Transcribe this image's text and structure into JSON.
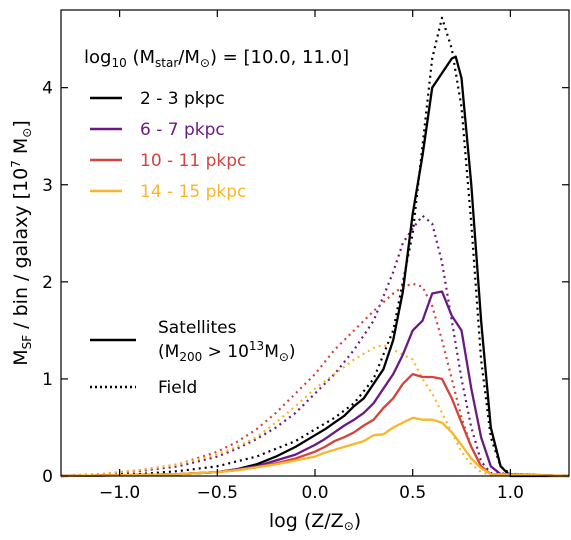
{
  "chart_data": {
    "type": "line",
    "title": "",
    "xlabel": "log (Z/Z⊙)",
    "ylabel": "M_SF / bin / galaxy [10^7 M⊙]",
    "xlim": [
      -1.3,
      1.3
    ],
    "ylim": [
      0,
      4.8
    ],
    "x_ticks": [
      -1.0,
      -0.5,
      0.0,
      0.5,
      1.0
    ],
    "x_tick_labels": [
      "−1.0",
      "−0.5",
      "0.0",
      "0.5",
      "1.0"
    ],
    "y_ticks": [
      0,
      1,
      2,
      3,
      4
    ],
    "y_tick_labels": [
      "0",
      "1",
      "2",
      "3",
      "4"
    ],
    "grid": false,
    "legend_title": "log10 (Mstar/M⊙) = [10.0, 11.0]",
    "legend_placement": "top-left",
    "style_legend_placement": "center-left",
    "colors": {
      "2-3": "#000000",
      "6-7": "#6a1b7f",
      "10-11": "#d2443d",
      "14-15": "#f8b62b"
    },
    "series": [
      {
        "name": "2 - 3 pkpc",
        "group": "Satellites",
        "color": "#000000",
        "style": "solid",
        "x": [
          -1.3,
          -1.1,
          -0.9,
          -0.7,
          -0.5,
          -0.4,
          -0.3,
          -0.2,
          -0.1,
          0.0,
          0.05,
          0.1,
          0.15,
          0.2,
          0.25,
          0.3,
          0.35,
          0.4,
          0.45,
          0.5,
          0.55,
          0.6,
          0.65,
          0.7,
          0.72,
          0.75,
          0.8,
          0.85,
          0.9,
          0.95,
          1.0,
          1.3
        ],
        "y": [
          0,
          0.005,
          0.01,
          0.02,
          0.04,
          0.07,
          0.12,
          0.2,
          0.3,
          0.42,
          0.48,
          0.55,
          0.62,
          0.72,
          0.8,
          0.95,
          1.1,
          1.4,
          1.9,
          2.7,
          3.3,
          4.0,
          4.15,
          4.3,
          4.32,
          4.1,
          3.0,
          1.6,
          0.5,
          0.1,
          0,
          0
        ]
      },
      {
        "name": "6 - 7 pkpc",
        "group": "Satellites",
        "color": "#6a1b7f",
        "style": "solid",
        "x": [
          -1.3,
          -1.1,
          -0.9,
          -0.7,
          -0.5,
          -0.4,
          -0.3,
          -0.2,
          -0.1,
          0.0,
          0.05,
          0.1,
          0.15,
          0.2,
          0.25,
          0.3,
          0.35,
          0.4,
          0.45,
          0.5,
          0.55,
          0.6,
          0.65,
          0.7,
          0.75,
          0.8,
          0.85,
          0.9,
          0.95,
          1.3
        ],
        "y": [
          0,
          0.005,
          0.01,
          0.02,
          0.04,
          0.07,
          0.1,
          0.16,
          0.22,
          0.32,
          0.38,
          0.45,
          0.52,
          0.58,
          0.65,
          0.75,
          0.9,
          1.05,
          1.25,
          1.5,
          1.6,
          1.88,
          1.9,
          1.65,
          1.5,
          0.9,
          0.4,
          0.1,
          0.02,
          0
        ]
      },
      {
        "name": "10 - 11 pkpc",
        "group": "Satellites",
        "color": "#d2443d",
        "style": "solid",
        "x": [
          -1.3,
          -1.1,
          -0.9,
          -0.7,
          -0.5,
          -0.4,
          -0.3,
          -0.2,
          -0.1,
          0.0,
          0.05,
          0.1,
          0.15,
          0.2,
          0.25,
          0.3,
          0.35,
          0.4,
          0.45,
          0.5,
          0.55,
          0.6,
          0.65,
          0.7,
          0.75,
          0.8,
          0.85,
          0.9,
          1.3
        ],
        "y": [
          0,
          0.005,
          0.01,
          0.02,
          0.04,
          0.06,
          0.09,
          0.13,
          0.18,
          0.25,
          0.3,
          0.36,
          0.4,
          0.45,
          0.52,
          0.58,
          0.7,
          0.8,
          0.95,
          1.05,
          1.02,
          1.02,
          1.0,
          0.8,
          0.55,
          0.3,
          0.1,
          0.02,
          0
        ]
      },
      {
        "name": "14 - 15 pkpc",
        "group": "Satellites",
        "color": "#f8b62b",
        "style": "solid",
        "x": [
          -1.3,
          -1.1,
          -0.9,
          -0.7,
          -0.5,
          -0.4,
          -0.3,
          -0.2,
          -0.1,
          0.0,
          0.05,
          0.1,
          0.15,
          0.2,
          0.25,
          0.3,
          0.35,
          0.4,
          0.45,
          0.5,
          0.55,
          0.6,
          0.65,
          0.7,
          0.75,
          0.8,
          0.85,
          0.9,
          1.3
        ],
        "y": [
          0,
          0.005,
          0.01,
          0.02,
          0.04,
          0.06,
          0.09,
          0.12,
          0.16,
          0.2,
          0.24,
          0.27,
          0.3,
          0.33,
          0.36,
          0.42,
          0.43,
          0.5,
          0.55,
          0.6,
          0.58,
          0.58,
          0.55,
          0.45,
          0.32,
          0.18,
          0.08,
          0.02,
          0
        ]
      },
      {
        "name": "2 - 3 pkpc",
        "group": "Field",
        "color": "#000000",
        "style": "dotted",
        "x": [
          -1.3,
          -1.1,
          -0.9,
          -0.7,
          -0.5,
          -0.4,
          -0.3,
          -0.2,
          -0.1,
          0.0,
          0.1,
          0.2,
          0.3,
          0.4,
          0.5,
          0.55,
          0.6,
          0.65,
          0.7,
          0.75,
          0.8,
          0.85,
          0.9,
          0.95,
          1.0,
          1.3
        ],
        "y": [
          0,
          0.01,
          0.02,
          0.05,
          0.1,
          0.15,
          0.2,
          0.28,
          0.36,
          0.48,
          0.6,
          0.75,
          1.0,
          1.5,
          2.5,
          3.4,
          4.3,
          4.72,
          4.4,
          3.8,
          2.6,
          1.2,
          0.4,
          0.1,
          0.02,
          0
        ]
      },
      {
        "name": "6 - 7 pkpc",
        "group": "Field",
        "color": "#6a1b7f",
        "style": "dotted",
        "x": [
          -1.3,
          -1.1,
          -0.9,
          -0.7,
          -0.5,
          -0.4,
          -0.3,
          -0.2,
          -0.1,
          0.0,
          0.1,
          0.2,
          0.3,
          0.4,
          0.45,
          0.5,
          0.55,
          0.6,
          0.65,
          0.7,
          0.75,
          0.8,
          0.85,
          0.9,
          1.3
        ],
        "y": [
          0,
          0.02,
          0.05,
          0.1,
          0.2,
          0.28,
          0.38,
          0.5,
          0.65,
          0.85,
          1.05,
          1.3,
          1.6,
          2.1,
          2.4,
          2.55,
          2.68,
          2.6,
          2.2,
          1.6,
          1.0,
          0.5,
          0.15,
          0.03,
          0
        ]
      },
      {
        "name": "10 - 11 pkpc",
        "group": "Field",
        "color": "#d2443d",
        "style": "dotted",
        "x": [
          -1.3,
          -1.1,
          -0.9,
          -0.7,
          -0.5,
          -0.4,
          -0.3,
          -0.2,
          -0.1,
          0.0,
          0.1,
          0.2,
          0.3,
          0.4,
          0.45,
          0.5,
          0.55,
          0.6,
          0.65,
          0.7,
          0.75,
          0.8,
          0.85,
          0.9,
          1.3
        ],
        "y": [
          0,
          0.02,
          0.06,
          0.12,
          0.25,
          0.35,
          0.48,
          0.65,
          0.85,
          1.05,
          1.3,
          1.5,
          1.7,
          1.88,
          1.95,
          1.98,
          1.95,
          1.75,
          1.4,
          1.0,
          0.6,
          0.3,
          0.1,
          0.02,
          0
        ]
      },
      {
        "name": "14 - 15 pkpc",
        "group": "Field",
        "color": "#f8b62b",
        "style": "dotted",
        "x": [
          -1.3,
          -1.1,
          -0.9,
          -0.7,
          -0.5,
          -0.4,
          -0.3,
          -0.2,
          -0.1,
          0.0,
          0.1,
          0.2,
          0.3,
          0.35,
          0.4,
          0.45,
          0.5,
          0.55,
          0.6,
          0.65,
          0.7,
          0.75,
          0.8,
          0.85,
          0.9,
          1.3
        ],
        "y": [
          0,
          0.02,
          0.06,
          0.12,
          0.22,
          0.3,
          0.4,
          0.55,
          0.72,
          0.9,
          1.05,
          1.2,
          1.32,
          1.35,
          1.3,
          1.25,
          1.2,
          1.0,
          0.85,
          0.65,
          0.45,
          0.25,
          0.12,
          0.04,
          0.01,
          0
        ]
      }
    ],
    "legend": {
      "title": "log10 (Mstar/M⊙) = [10.0, 11.0]",
      "entries": [
        {
          "label": "2 - 3 pkpc",
          "color": "#000000"
        },
        {
          "label": "6 - 7 pkpc",
          "color": "#6a1b7f"
        },
        {
          "label": "10 - 11 pkpc",
          "color": "#d2443d"
        },
        {
          "label": "14 - 15 pkpc",
          "color": "#f8b62b"
        }
      ],
      "style_entries": [
        {
          "label": "Satellites",
          "sublabel": "(M200 > 10^13 M⊙)",
          "style": "solid"
        },
        {
          "label": "Field",
          "style": "dotted"
        }
      ]
    }
  }
}
